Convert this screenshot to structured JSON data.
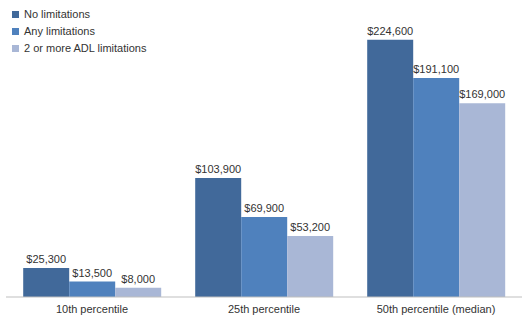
{
  "chart_data": {
    "type": "bar",
    "categories": [
      "10th percentile",
      "25th percentile",
      "50th percentile (median)"
    ],
    "series": [
      {
        "name": "No limitations",
        "color": "#41699a",
        "values": [
          25300,
          103900,
          224600
        ],
        "value_labels": [
          "$25,300",
          "$103,900",
          "$224,600"
        ]
      },
      {
        "name": "Any limitations",
        "color": "#4f81bd",
        "values": [
          13500,
          69900,
          191100
        ],
        "value_labels": [
          "$13,500",
          "$69,900",
          "$191,100"
        ]
      },
      {
        "name": "2 or more ADL limitations",
        "color": "#a9b7d6",
        "values": [
          8000,
          53200,
          169000
        ],
        "value_labels": [
          "$8,000",
          "$53,200",
          "$169,000"
        ]
      }
    ],
    "ylim": [
      0,
      240000
    ],
    "data_labels": true,
    "legend": "top-left",
    "tick_labels": "x",
    "grid": false
  }
}
